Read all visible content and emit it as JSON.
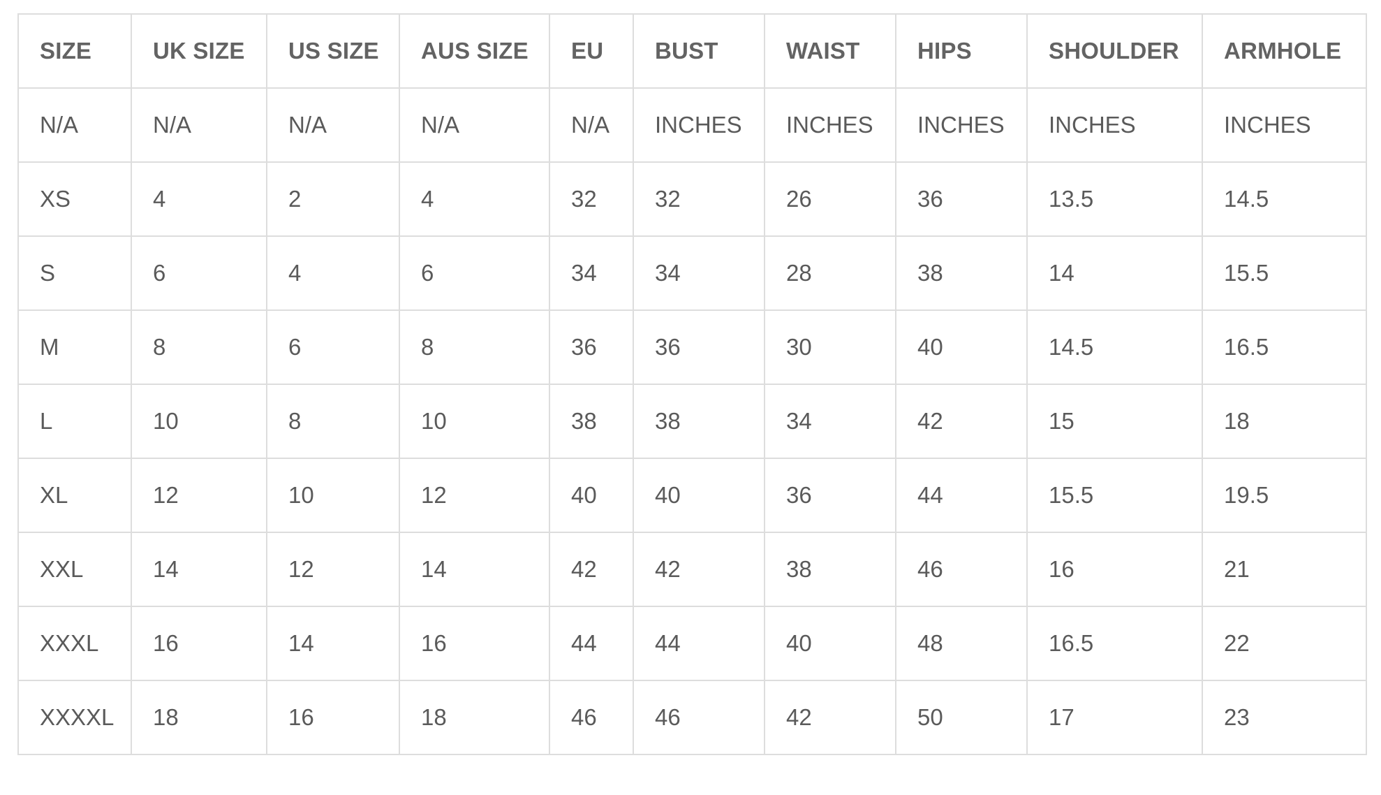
{
  "size_chart": {
    "headers": [
      "SIZE",
      "UK SIZE",
      "US SIZE",
      "AUS SIZE",
      "EU",
      "BUST",
      "WAIST",
      "HIPS",
      "SHOULDER",
      "ARMHOLE"
    ],
    "units": [
      "N/A",
      "N/A",
      "N/A",
      "N/A",
      "N/A",
      "INCHES",
      "INCHES",
      "INCHES",
      "INCHES",
      "INCHES"
    ],
    "rows": [
      [
        "XS",
        "4",
        "2",
        "4",
        "32",
        "32",
        "26",
        "36",
        "13.5",
        "14.5"
      ],
      [
        "S",
        "6",
        "4",
        "6",
        "34",
        "34",
        "28",
        "38",
        "14",
        "15.5"
      ],
      [
        "M",
        "8",
        "6",
        "8",
        "36",
        "36",
        "30",
        "40",
        "14.5",
        "16.5"
      ],
      [
        "L",
        "10",
        "8",
        "10",
        "38",
        "38",
        "34",
        "42",
        "15",
        "18"
      ],
      [
        "XL",
        "12",
        "10",
        "12",
        "40",
        "40",
        "36",
        "44",
        "15.5",
        "19.5"
      ],
      [
        "XXL",
        "14",
        "12",
        "14",
        "42",
        "42",
        "38",
        "46",
        "16",
        "21"
      ],
      [
        "XXXL",
        "16",
        "14",
        "16",
        "44",
        "44",
        "40",
        "48",
        "16.5",
        "22"
      ],
      [
        "XXXXL",
        "18",
        "16",
        "18",
        "46",
        "46",
        "42",
        "50",
        "17",
        "23"
      ]
    ]
  },
  "colors": {
    "border": "#dddddd",
    "text": "#5a5a5a",
    "header_text": "#636363",
    "background": "#ffffff"
  }
}
